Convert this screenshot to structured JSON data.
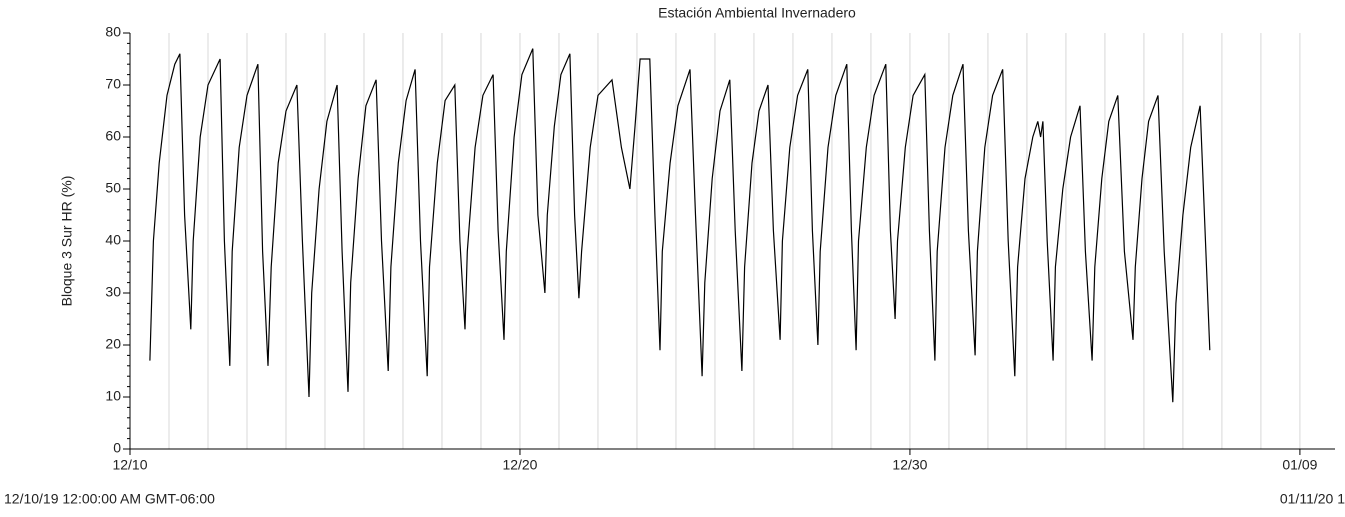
{
  "chart_data": {
    "type": "line",
    "title": "Estación Ambiental Invernadero",
    "y_label": "Bloque 3 Sur HR (%)",
    "start_label": "12/10/19 12:00:00 AM GMT-06:00",
    "end_label": "01/11/20 1",
    "xlim": [
      0,
      30.9
    ],
    "xticks": [
      {
        "value": 0,
        "label": "12/10"
      },
      {
        "value": 10,
        "label": "12/20"
      },
      {
        "value": 20,
        "label": "12/30"
      },
      {
        "value": 30,
        "label": "01/09"
      }
    ],
    "ylim": [
      0,
      80
    ],
    "yticks": [
      0,
      10,
      20,
      30,
      40,
      50,
      60,
      70,
      80
    ],
    "grid": true,
    "series": [
      {
        "color": "#000000",
        "x": [
          0.51,
          0.6,
          0.75,
          0.95,
          1.15,
          1.28,
          1.4,
          1.56,
          1.62,
          1.8,
          2.0,
          2.31,
          2.42,
          2.56,
          2.62,
          2.8,
          3.0,
          3.28,
          3.4,
          3.54,
          3.62,
          3.8,
          4.0,
          4.28,
          4.42,
          4.59,
          4.66,
          4.85,
          5.05,
          5.31,
          5.44,
          5.59,
          5.66,
          5.85,
          6.05,
          6.31,
          6.45,
          6.62,
          6.69,
          6.88,
          7.08,
          7.31,
          7.45,
          7.62,
          7.68,
          7.88,
          8.08,
          8.33,
          8.46,
          8.59,
          8.65,
          8.85,
          9.05,
          9.31,
          9.44,
          9.59,
          9.65,
          9.85,
          10.05,
          10.33,
          10.46,
          10.64,
          10.7,
          10.88,
          11.05,
          11.28,
          11.4,
          11.51,
          11.58,
          11.8,
          12.0,
          12.36,
          12.6,
          12.82,
          12.95,
          13.08,
          13.33,
          13.46,
          13.59,
          13.65,
          13.85,
          14.05,
          14.36,
          14.5,
          14.67,
          14.74,
          14.93,
          15.13,
          15.38,
          15.52,
          15.69,
          15.76,
          15.95,
          16.13,
          16.36,
          16.5,
          16.67,
          16.73,
          16.92,
          17.12,
          17.38,
          17.5,
          17.64,
          17.7,
          17.9,
          18.1,
          18.38,
          18.5,
          18.62,
          18.68,
          18.88,
          19.08,
          19.38,
          19.5,
          19.62,
          19.68,
          19.88,
          20.08,
          20.38,
          20.5,
          20.64,
          20.7,
          20.9,
          21.1,
          21.36,
          21.5,
          21.67,
          21.73,
          21.92,
          22.12,
          22.38,
          22.52,
          22.69,
          22.76,
          22.95,
          23.15,
          23.28,
          23.35,
          23.41,
          23.52,
          23.67,
          23.73,
          23.92,
          24.12,
          24.36,
          24.5,
          24.67,
          24.74,
          24.92,
          25.1,
          25.33,
          25.5,
          25.72,
          25.78,
          25.95,
          26.12,
          26.36,
          26.52,
          26.74,
          26.82,
          27.0,
          27.2,
          27.44,
          27.69
        ],
        "values": [
          17,
          40,
          55,
          68,
          74,
          76,
          45,
          23,
          40,
          60,
          70,
          75,
          40,
          16,
          38,
          58,
          68,
          74,
          38,
          16,
          35,
          55,
          65,
          70,
          40,
          10,
          30,
          50,
          63,
          70,
          38,
          11,
          32,
          52,
          66,
          71,
          40,
          15,
          35,
          55,
          67,
          73,
          40,
          14,
          35,
          55,
          67,
          70,
          40,
          23,
          38,
          58,
          68,
          72,
          42,
          21,
          38,
          60,
          72,
          77,
          45,
          30,
          45,
          62,
          72,
          76,
          45,
          29,
          38,
          58,
          68,
          71,
          58,
          50,
          62,
          75,
          75,
          45,
          19,
          38,
          55,
          66,
          73,
          45,
          14,
          32,
          52,
          65,
          71,
          42,
          15,
          35,
          55,
          65,
          70,
          42,
          21,
          40,
          58,
          68,
          73,
          42,
          20,
          38,
          58,
          68,
          74,
          42,
          19,
          40,
          58,
          68,
          74,
          42,
          25,
          40,
          58,
          68,
          72,
          42,
          17,
          38,
          58,
          68,
          74,
          42,
          18,
          38,
          58,
          68,
          73,
          40,
          14,
          35,
          52,
          60,
          63,
          60,
          63,
          40,
          17,
          35,
          50,
          60,
          66,
          38,
          17,
          35,
          52,
          63,
          68,
          38,
          21,
          35,
          52,
          63,
          68,
          38,
          9,
          28,
          45,
          58,
          66,
          19
        ]
      }
    ]
  }
}
